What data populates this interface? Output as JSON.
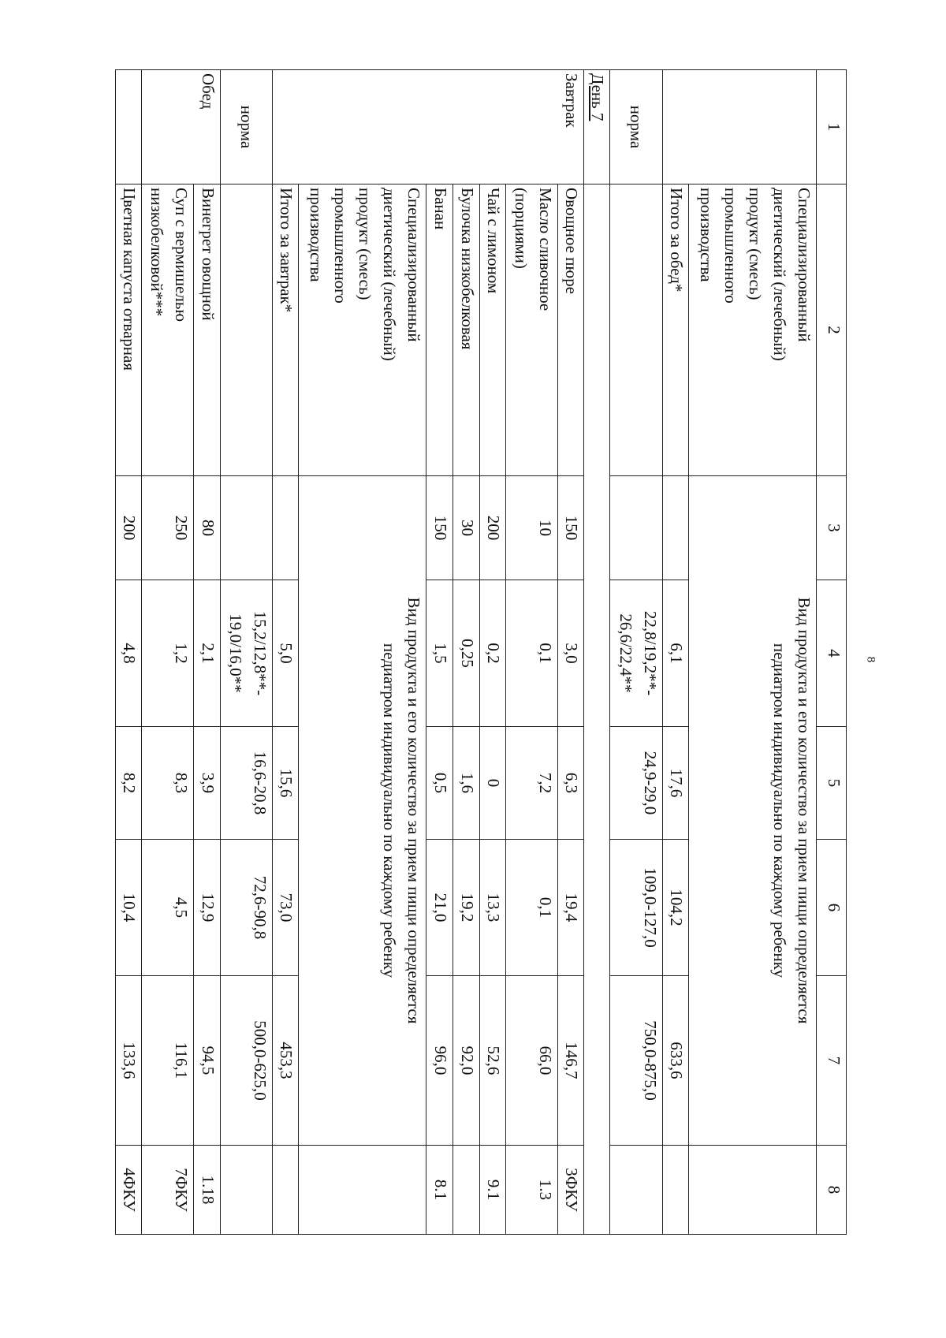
{
  "page_number": "8",
  "header": [
    "1",
    "2",
    "3",
    "4",
    "5",
    "6",
    "7",
    "8"
  ],
  "lunch_prev": {
    "mixture": "Специализированный\nдиетический (лечебный)\nпродукт (смесь)\nпромышленного\nпроизводства",
    "note": "Вид продукта и его количество за прием пищи определяется\nпедиатром индивидуально по каждому ребенку",
    "total": {
      "label": "Итого за обед*",
      "c4": "6,1",
      "c5": "17,6",
      "c6": "104,2",
      "c7": "633,6"
    },
    "norm": {
      "label": "норма",
      "c4": "22,8/19,2**-\n26,6/22,4**",
      "c5": "24,9-29,0",
      "c6": "109,0-127,0",
      "c7": "750,0-875,0"
    }
  },
  "day": "День 7",
  "breakfast": {
    "label": "Завтрак",
    "items": [
      {
        "name": "Овощное пюре",
        "c3": "150",
        "c4": "3,0",
        "c5": "6,3",
        "c6": "19,4",
        "c7": "146,7",
        "c8": "3ФКУ"
      },
      {
        "name": "Масло сливочное\n(порциями)",
        "c3": "10",
        "c4": "0,1",
        "c5": "7,2",
        "c6": "0,1",
        "c7": "66,0",
        "c8": "1.3"
      },
      {
        "name": "Чай с лимоном",
        "c3": "200",
        "c4": "0,2",
        "c5": "0",
        "c6": "13,3",
        "c7": "52,6",
        "c8": "9.1"
      },
      {
        "name": "Булочка низкобелковая",
        "c3": "30",
        "c4": "0,25",
        "c5": "1,6",
        "c6": "19,2",
        "c7": "92,0",
        "c8": ""
      },
      {
        "name": "Банан",
        "c3": "150",
        "c4": "1,5",
        "c5": "0,5",
        "c6": "21,0",
        "c7": "96,0",
        "c8": "8.1"
      }
    ],
    "mixture": "Специализированный\nдиетический (лечебный)\nпродукт (смесь)\nпромышленного\nпроизводства",
    "note": "Вид продукта и его количество за прием пищи определяется\nпедиатром индивидуально по каждому ребенку",
    "total": {
      "label": "Итого за завтрак*",
      "c4": "5,0",
      "c5": "15,6",
      "c6": "73,0",
      "c7": "453,3"
    },
    "norm": {
      "label": "норма",
      "c4": "15,2/12,8**-\n19,0/16,0**",
      "c5": "16,6-20,8",
      "c6": "72,6-90,8",
      "c7": "500,0-625,0"
    }
  },
  "lunch": {
    "label": "Обед",
    "items": [
      {
        "name": "Винегрет овощной",
        "c3": "80",
        "c4": "2,1",
        "c5": "3,9",
        "c6": "12,9",
        "c7": "94,5",
        "c8": "1.18"
      },
      {
        "name": "Суп с вермишелью\nнизкобелковой***",
        "c3": "250",
        "c4": "1,2",
        "c5": "8,3",
        "c6": "4,5",
        "c7": "116,1",
        "c8": "7ФКУ"
      },
      {
        "name": "Цветная капуста отварная",
        "c3": "200",
        "c4": "4,8",
        "c5": "8,2",
        "c6": "10,4",
        "c7": "133,6",
        "c8": "4ФКУ"
      }
    ]
  }
}
